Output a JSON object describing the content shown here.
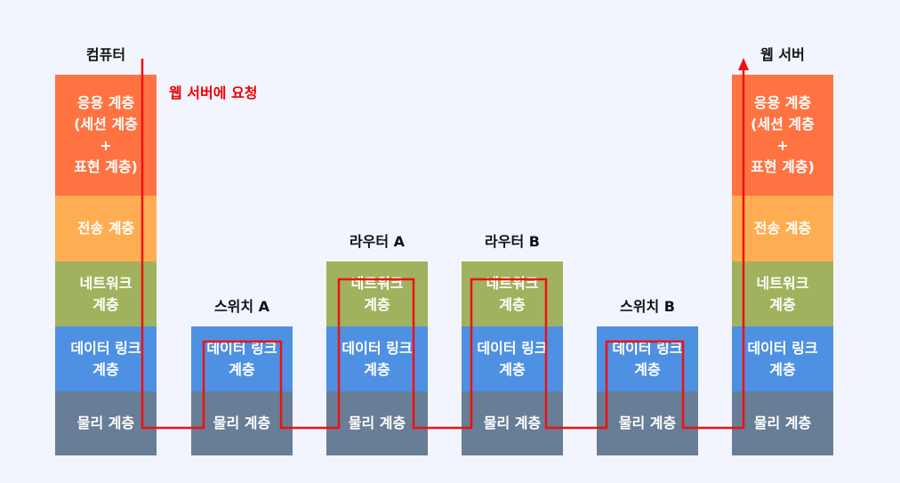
{
  "request_label": "웹 서버에 요청",
  "nodes": {
    "computer": {
      "title": "컴퓨터",
      "app": "응용 계층\n(세션 계층\n+\n표현 계층)",
      "transport": "전송 계층",
      "network": "네트워크\n계층",
      "datalink": "데이터 링크\n계층",
      "physical": "물리 계층"
    },
    "switch_a": {
      "title": "스위치 A",
      "datalink": "데이터 링크\n계층",
      "physical": "물리 계층"
    },
    "router_a": {
      "title": "라우터 A",
      "network": "네트워크\n계층",
      "datalink": "데이터 링크\n계층",
      "physical": "물리 계층"
    },
    "router_b": {
      "title": "라우터 B",
      "network": "네트워크\n계층",
      "datalink": "데이터 링크\n계층",
      "physical": "물리 계층"
    },
    "switch_b": {
      "title": "스위치 B",
      "datalink": "데이터 링크\n계층",
      "physical": "물리 계층"
    },
    "web_server": {
      "title": "웹 서버",
      "app": "응용 계층\n(세션 계층\n+\n표현 계층)",
      "transport": "전송 계층",
      "network": "네트워크\n계층",
      "datalink": "데이터 링크\n계층",
      "physical": "물리 계층"
    }
  },
  "colors": {
    "application": "#ff7342",
    "transport": "#ffad52",
    "network": "#a0b25d",
    "datalink": "#4e90e2",
    "physical": "#687d96",
    "path": "#ee1111"
  }
}
